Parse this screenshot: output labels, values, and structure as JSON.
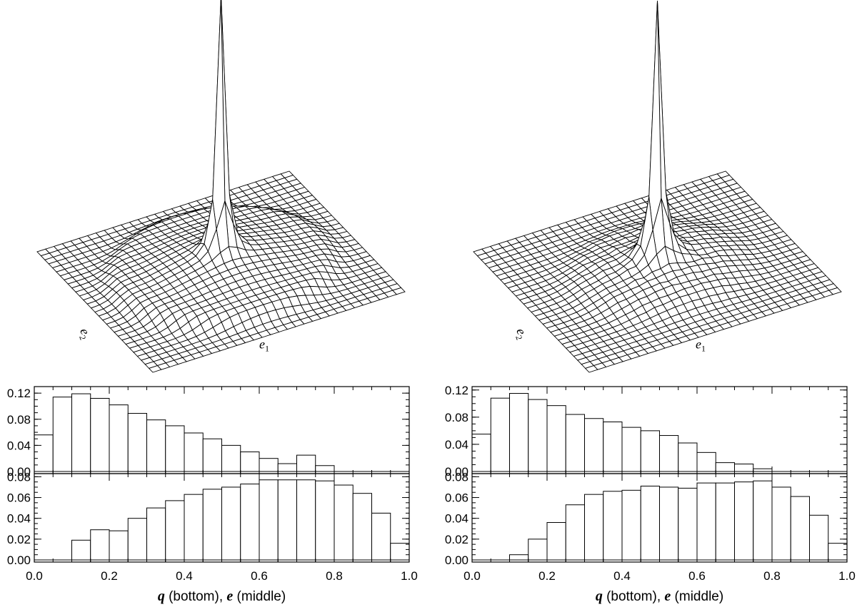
{
  "chart_data": [
    {
      "type": "surface",
      "panel": "top-left",
      "xlabel": "e",
      "xlabel_sub": "1",
      "ylabel": "e",
      "ylabel_sub": "2",
      "grid_n": 31,
      "shape": {
        "peak": 1.0,
        "width": 0.045,
        "shoulder": 0.09,
        "shoulder_radius": 0.75,
        "shoulder_width": 0.12,
        "noise": 0.0
      }
    },
    {
      "type": "surface",
      "panel": "top-right",
      "xlabel": "e",
      "xlabel_sub": "1",
      "ylabel": "e",
      "ylabel_sub": "2",
      "grid_n": 31,
      "shape": {
        "peak": 1.0,
        "width": 0.05,
        "shoulder": 0.07,
        "shoulder_radius": 0.55,
        "shoulder_width": 0.22,
        "noise": 0.35
      }
    },
    {
      "type": "bar",
      "panel": "left-middle",
      "bin_edges_start": 0.0,
      "bin_width": 0.05,
      "values": [
        0.056,
        0.114,
        0.119,
        0.112,
        0.102,
        0.089,
        0.079,
        0.07,
        0.059,
        0.05,
        0.04,
        0.03,
        0.02,
        0.012,
        0.025,
        0.009,
        0,
        0,
        0,
        0
      ],
      "ylim": [
        0,
        0.13
      ],
      "yticks": [
        "0.00",
        "0.04",
        "0.08",
        "0.12"
      ],
      "ytick_values": [
        0,
        0.04,
        0.08,
        0.12
      ]
    },
    {
      "type": "bar",
      "panel": "left-bottom",
      "bin_edges_start": 0.0,
      "bin_width": 0.05,
      "values": [
        0,
        0,
        0.019,
        0.029,
        0.028,
        0.04,
        0.05,
        0.057,
        0.063,
        0.068,
        0.07,
        0.073,
        0.077,
        0.077,
        0.077,
        0.076,
        0.072,
        0.064,
        0.045,
        0.016
      ],
      "ylim": [
        0,
        0.083
      ],
      "yticks": [
        "0.00",
        "0.02",
        "0.04",
        "0.06",
        "0.08"
      ],
      "ytick_values": [
        0,
        0.02,
        0.04,
        0.06,
        0.08
      ],
      "xticks": [
        "0.0",
        "0.2",
        "0.4",
        "0.6",
        "0.8",
        "1.0"
      ],
      "xtick_values": [
        0,
        0.2,
        0.4,
        0.6,
        0.8,
        1.0
      ],
      "xlabel_parts": [
        "q",
        " (bottom), ",
        "e",
        " (middle)"
      ]
    },
    {
      "type": "bar",
      "panel": "right-middle",
      "bin_edges_start": 0.0,
      "bin_width": 0.05,
      "values": [
        0.055,
        0.108,
        0.115,
        0.106,
        0.097,
        0.084,
        0.078,
        0.073,
        0.065,
        0.06,
        0.053,
        0.042,
        0.028,
        0.013,
        0.011,
        0.004,
        0,
        0,
        0,
        0
      ],
      "ylim": [
        0,
        0.125
      ],
      "yticks": [
        "0.00",
        "0.04",
        "0.08",
        "0.12"
      ],
      "ytick_values": [
        0,
        0.04,
        0.08,
        0.12
      ]
    },
    {
      "type": "bar",
      "panel": "right-bottom",
      "bin_edges_start": 0.0,
      "bin_width": 0.05,
      "values": [
        0,
        0,
        0.005,
        0.02,
        0.036,
        0.053,
        0.063,
        0.066,
        0.067,
        0.071,
        0.07,
        0.069,
        0.074,
        0.074,
        0.075,
        0.076,
        0.07,
        0.061,
        0.043,
        0.016
      ],
      "ylim": [
        0,
        0.083
      ],
      "yticks": [
        "0.00",
        "0.02",
        "0.04",
        "0.06",
        "0.08"
      ],
      "ytick_values": [
        0,
        0.02,
        0.04,
        0.06,
        0.08
      ],
      "xticks": [
        "0.0",
        "0.2",
        "0.4",
        "0.6",
        "0.8",
        "1.0"
      ],
      "xtick_values": [
        0,
        0.2,
        0.4,
        0.6,
        0.8,
        1.0
      ],
      "xlabel_parts": [
        "q",
        " (bottom), ",
        "e",
        " (middle)"
      ]
    }
  ]
}
